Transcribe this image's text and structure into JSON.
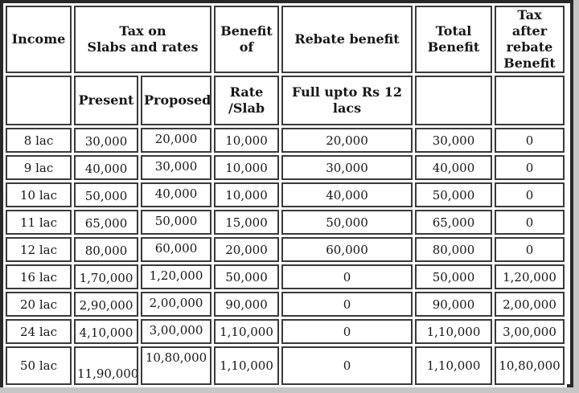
{
  "page": {
    "background_color": "#c6c6c6",
    "sheet_color": "#ffffff",
    "outer_border_color": "#282828",
    "cell_border_color": "#3a3a3a",
    "text_color": "#161616"
  },
  "chart_data": {
    "type": "table",
    "header": {
      "income": "Income",
      "tax_on_slabs_and_rates": "Tax on\nSlabs and rates",
      "benefit_of": "Benefit\nof",
      "rebate_benefit": "Rebate benefit",
      "total_benefit": "Total\nBenefit",
      "tax_after_rebate_benefit": "Tax after\nrebate\nBenefit",
      "present": "Present",
      "proposed": "Proposed",
      "rate_slab": "Rate\n/Slab",
      "full_upto": "Full upto Rs 12\nlacs",
      "empty": ""
    },
    "columns": [
      "Income",
      "Present",
      "Proposed",
      "Rate /Slab",
      "Rebate benefit (Full upto Rs 12 lacs)",
      "Total Benefit",
      "Tax after rebate Benefit"
    ],
    "rows": [
      [
        "8 lac",
        "30,000",
        "20,000",
        "10,000",
        "20,000",
        "30,000",
        "0"
      ],
      [
        "9 lac",
        "40,000",
        "30,000",
        "10,000",
        "30,000",
        "40,000",
        "0"
      ],
      [
        "10 lac",
        "50,000",
        "40,000",
        "10,000",
        "40,000",
        "50,000",
        "0"
      ],
      [
        "11 lac",
        "65,000",
        "50,000",
        "15,000",
        "50,000",
        "65,000",
        "0"
      ],
      [
        "12 lac",
        "80,000",
        "60,000",
        "20,000",
        "60,000",
        "80,000",
        "0"
      ],
      [
        "16 lac",
        "1,70,000",
        "1,20,000",
        "50,000",
        "0",
        "50,000",
        "1,20,000"
      ],
      [
        "20 lac",
        "2,90,000",
        "2,00,000",
        "90,000",
        "0",
        "90,000",
        "2,00,000"
      ],
      [
        "24 lac",
        "4,10,000",
        "3,00,000",
        "1,10,000",
        "0",
        "1,10,000",
        "3,00,000"
      ],
      [
        "50 lac",
        "11,90,000",
        "10,80,000",
        "1,10,000",
        "0",
        "1,10,000",
        "10,80,000"
      ]
    ]
  }
}
